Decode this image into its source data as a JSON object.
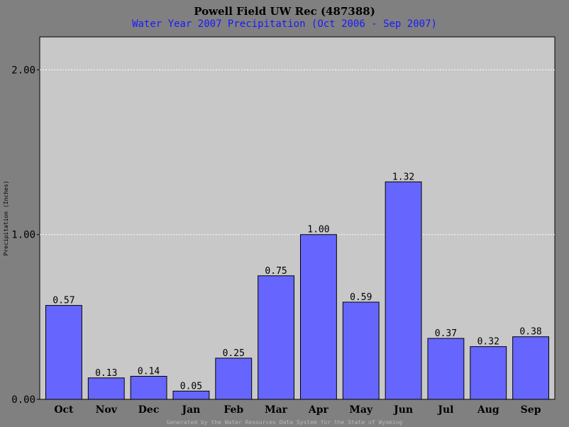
{
  "colors": {
    "page_background": "#808080",
    "plot_background": "#c8c8c8",
    "bar_fill": "#6666ff",
    "bar_stroke": "#000000",
    "gridline": "#ffffff",
    "subtitle": "#1a1aff",
    "footer": "#b8b8b8"
  },
  "chart_data": {
    "type": "bar",
    "title": "Powell Field UW Rec (487388)",
    "subtitle": "Water Year 2007 Precipitation (Oct 2006 - Sep 2007)",
    "xlabel": "",
    "ylabel": "Precipitation (Inches)",
    "categories": [
      "Oct",
      "Nov",
      "Dec",
      "Jan",
      "Feb",
      "Mar",
      "Apr",
      "May",
      "Jun",
      "Jul",
      "Aug",
      "Sep"
    ],
    "values": [
      0.57,
      0.13,
      0.14,
      0.05,
      0.25,
      0.75,
      1.0,
      0.59,
      1.32,
      0.37,
      0.32,
      0.38
    ],
    "value_labels": [
      "0.57",
      "0.13",
      "0.14",
      "0.05",
      "0.25",
      "0.75",
      "1.00",
      "0.59",
      "1.32",
      "0.37",
      "0.32",
      "0.38"
    ],
    "ylim": [
      0,
      2.2
    ],
    "yticks": [
      0,
      1,
      2
    ],
    "ytick_labels": [
      "0.00",
      "1.00",
      "2.00"
    ],
    "grid": "horizontal dotted",
    "legend": "none",
    "footer": "Generated by the Water Resources Data System for the State of Wyoming"
  }
}
